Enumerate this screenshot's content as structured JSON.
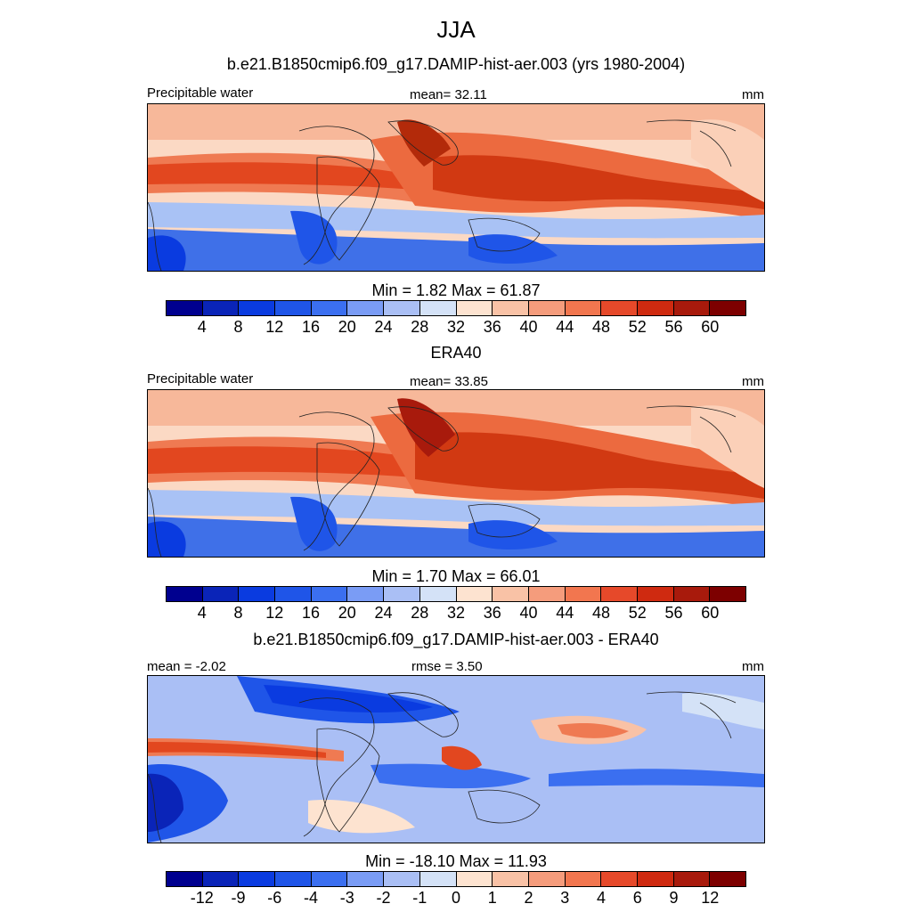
{
  "title": "JJA",
  "panels": [
    {
      "id": "model",
      "header": "b.e21.B1850cmip6.f09_g17.DAMIP-hist-aer.003 (yrs 1980-2004)",
      "left_label": "Precipitable water",
      "center_label": "mean=  32.11",
      "right_label": "mm",
      "minmax": "Min =   1.82 Max =  61.87",
      "field_min": 1.82,
      "field_max": 61.87,
      "field_mean": 32.11,
      "levels": [
        "4",
        "8",
        "12",
        "16",
        "20",
        "24",
        "28",
        "32",
        "36",
        "40",
        "44",
        "48",
        "52",
        "56",
        "60"
      ],
      "colors": [
        "#00008f",
        "#0a24b8",
        "#0a3be0",
        "#1f55e8",
        "#3b6ff0",
        "#7a9cf5",
        "#aabff5",
        "#d4e2f7",
        "#fde3d0",
        "#f9c2a6",
        "#f59c7c",
        "#f2764f",
        "#e6492a",
        "#cf2a10",
        "#a81a0c",
        "#7d0000"
      ]
    },
    {
      "id": "obs",
      "header": "ERA40",
      "left_label": "Precipitable water",
      "center_label": "mean=  33.85",
      "right_label": "mm",
      "minmax": "Min =   1.70 Max =  66.01",
      "field_min": 1.7,
      "field_max": 66.01,
      "field_mean": 33.85,
      "levels": [
        "4",
        "8",
        "12",
        "16",
        "20",
        "24",
        "28",
        "32",
        "36",
        "40",
        "44",
        "48",
        "52",
        "56",
        "60"
      ],
      "colors": [
        "#00008f",
        "#0a24b8",
        "#0a3be0",
        "#1f55e8",
        "#3b6ff0",
        "#7a9cf5",
        "#aabff5",
        "#d4e2f7",
        "#fde3d0",
        "#f9c2a6",
        "#f59c7c",
        "#f2764f",
        "#e6492a",
        "#cf2a10",
        "#a81a0c",
        "#7d0000"
      ]
    },
    {
      "id": "diff",
      "header": "b.e21.B1850cmip6.f09_g17.DAMIP-hist-aer.003 - ERA40",
      "left_label": "mean =  -2.02",
      "center_label": "rmse =   3.50",
      "right_label": "mm",
      "minmax": "Min = -18.10 Max =  11.93",
      "field_min": -18.1,
      "field_max": 11.93,
      "field_mean": -2.02,
      "field_rmse": 3.5,
      "levels": [
        "-12",
        "-9",
        "-6",
        "-4",
        "-3",
        "-2",
        "-1",
        "0",
        "1",
        "2",
        "3",
        "4",
        "6",
        "9",
        "12"
      ],
      "colors": [
        "#00008f",
        "#0a24b8",
        "#0a3be0",
        "#1f55e8",
        "#3b6ff0",
        "#7a9cf5",
        "#aabff5",
        "#d4e2f7",
        "#fde3d0",
        "#f9c2a6",
        "#f59c7c",
        "#f2764f",
        "#e6492a",
        "#cf2a10",
        "#a81a0c",
        "#7d0000"
      ]
    }
  ]
}
